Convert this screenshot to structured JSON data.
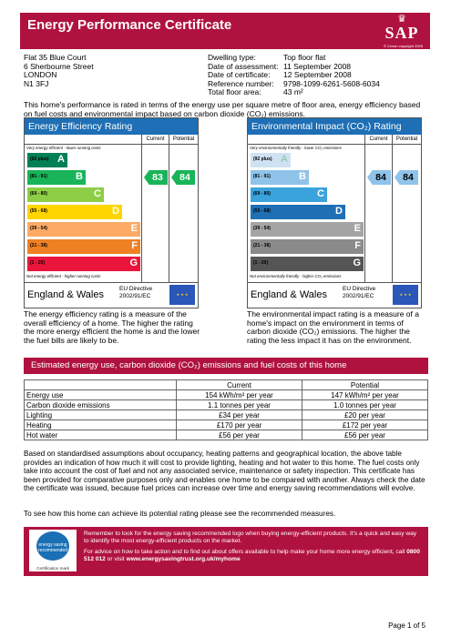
{
  "header": {
    "title": "Energy Performance Certificate",
    "logo_text": "SAP",
    "copyright": "© Crown copyright 2005"
  },
  "address": [
    "Flat 35 Blue Court",
    "6 Sherbourne Street",
    "LONDON",
    "N1 3FJ"
  ],
  "details": [
    {
      "label": "Dwelling type:",
      "value": "Top floor flat"
    },
    {
      "label": "Date of assessment:",
      "value": "11 September 2008"
    },
    {
      "label": "Date of certificate:",
      "value": "12 September 2008"
    },
    {
      "label": "Reference number:",
      "value": "9798-1099-6261-5608-6034"
    },
    {
      "label": "Total floor area:",
      "value": "43 m²"
    }
  ],
  "intro": "This home's performance is rated in terms of the energy use per square metre of floor area, energy efficiency based on fuel costs and environmental impact based on carbon dioxide (CO₂) emissions.",
  "efficiency": {
    "title": "Energy Efficiency Rating",
    "col_current": "Current",
    "col_potential": "Potential",
    "top_text": "Very energy efficient - lower running costs",
    "bottom_text": "Not energy efficient - higher running costs",
    "bands": [
      {
        "range": "(92 plus)",
        "letter": "A",
        "color": "#008054"
      },
      {
        "range": "(81 - 91)",
        "letter": "B",
        "color": "#19b459"
      },
      {
        "range": "(69 - 80)",
        "letter": "C",
        "color": "#8dce46"
      },
      {
        "range": "(55 - 68)",
        "letter": "D",
        "color": "#ffd500"
      },
      {
        "range": "(39 - 54)",
        "letter": "E",
        "color": "#fcaa65"
      },
      {
        "range": "(21 - 38)",
        "letter": "F",
        "color": "#ef8023"
      },
      {
        "range": "(1 - 20)",
        "letter": "G",
        "color": "#e9153b"
      }
    ],
    "current": "83",
    "potential": "84",
    "arrow_color": "#19b459",
    "country": "England & Wales",
    "directive": [
      "EU Directive",
      "2002/91/EC"
    ]
  },
  "environment": {
    "title": "Environmental Impact (CO₂) Rating",
    "col_current": "Current",
    "col_potential": "Potential",
    "top_text": "Very environmentally friendly - lower CO₂ emissions",
    "bottom_text": "Not environmentally friendly - higher CO₂ emissions",
    "bands": [
      {
        "range": "(92 plus)",
        "letter": "A",
        "color": "#cfe2f3"
      },
      {
        "range": "(81 - 91)",
        "letter": "B",
        "color": "#8fc3ea"
      },
      {
        "range": "(69 - 80)",
        "letter": "C",
        "color": "#3aa3db"
      },
      {
        "range": "(55 - 68)",
        "letter": "D",
        "color": "#1f6fb4"
      },
      {
        "range": "(39 - 54)",
        "letter": "E",
        "color": "#a4a4a4"
      },
      {
        "range": "(21 - 38)",
        "letter": "F",
        "color": "#8a8a8a"
      },
      {
        "range": "(1 - 20)",
        "letter": "G",
        "color": "#555555"
      }
    ],
    "current": "84",
    "potential": "84",
    "arrow_color": "#8fc3ea",
    "country": "England & Wales",
    "directive": [
      "EU Directive",
      "2002/91/EC"
    ]
  },
  "efficiency_desc": "The energy efficiency rating is a measure of the overall efficiency of a home. The higher the rating the more energy efficient the home is and the lower the fuel bills are likely to be.",
  "environment_desc": "The environmental impact rating is a measure of a home's impact on the environment in terms of carbon dioxide (CO₂) emissions. The higher the rating the less impact it has on the environment.",
  "costs": {
    "title": "Estimated energy use, carbon dioxide (CO₂) emissions and fuel costs of this home",
    "headers": [
      "",
      "Current",
      "Potential"
    ],
    "rows": [
      [
        "Energy use",
        "154 kWh/m² per year",
        "147 kWh/m² per year"
      ],
      [
        "Carbon dioxide emissions",
        "1.1 tonnes per year",
        "1.0 tonnes per year"
      ],
      [
        "Lighting",
        "£34 per year",
        "£20 per year"
      ],
      [
        "Heating",
        "£170 per year",
        "£172 per year"
      ],
      [
        "Hot water",
        "£56 per year",
        "£56 per year"
      ]
    ]
  },
  "assumptions": "Based on standardised assumptions about occupancy, heating patterns and geographical location, the above table provides an indication of how much it will cost to provide lighting, heating and hot water to this home. The fuel costs only take into account the cost of fuel and not any associated service, maintenance or safety inspection. This certificate has been provided for comparative purposes only and enables one home to be compared with another. Always check the date the certificate was issued, because fuel prices can increase over time and energy saving recommendations will evolve.",
  "see_how": "To see how this home can achieve its potential rating please see the recommended measures.",
  "advice": {
    "logo_text": "energy saving recommended",
    "logo_caption": "Certification mark",
    "line1": "Remember to look for the energy saving recommended logo when buying energy-efficient products. It's a quick and easy way to identify the most energy-efficient products on the market.",
    "line2_prefix": "For advice on how to take action and to find out about offers available to help make your home more energy efficient, call ",
    "phone": "0800 512 012",
    "line2_mid": " or visit ",
    "website": "www.energysavingtrust.org.uk/myhome"
  },
  "page": "Page 1 of 5"
}
